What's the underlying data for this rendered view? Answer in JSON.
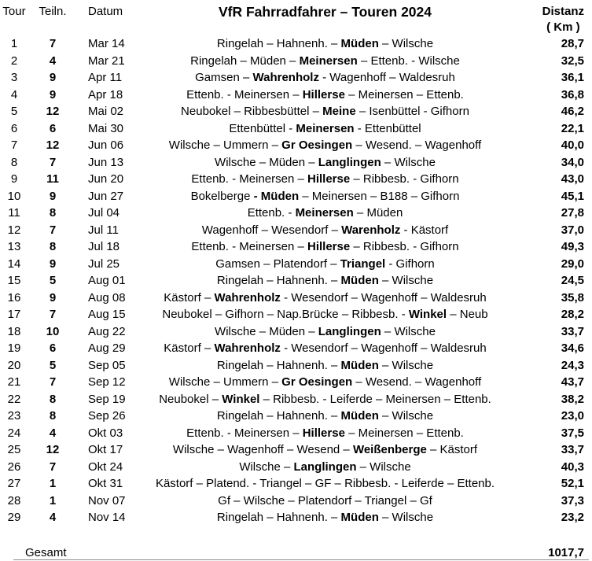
{
  "header": {
    "tour": "Tour",
    "teiln": "Teiln.",
    "datum": "Datum",
    "title": "VfR Fahrradfahrer – Touren 2024",
    "distanz_line1": "Distanz",
    "distanz_line2": "( Km )"
  },
  "rows": [
    {
      "tour": "1",
      "teiln": "7",
      "datum": "Mar 14",
      "route_pre": "Ringelah – Hahnenh. – ",
      "route_bold": "Müden",
      "route_post": " – Wilsche",
      "distanz": "28,7"
    },
    {
      "tour": "2",
      "teiln": "4",
      "datum": "Mar 21",
      "route_pre": "Ringelah – Müden – ",
      "route_bold": "Meinersen",
      "route_post": " – Ettenb. - Wilsche",
      "distanz": "32,5"
    },
    {
      "tour": "3",
      "teiln": "9",
      "datum": "Apr 11",
      "route_pre": "Gamsen – ",
      "route_bold": "Wahrenholz",
      "route_post": " - Wagenhoff – Waldesruh",
      "distanz": "36,1"
    },
    {
      "tour": "4",
      "teiln": "9",
      "datum": "Apr 18",
      "route_pre": "Ettenb. - Meinersen – ",
      "route_bold": "Hillerse",
      "route_post": " – Meinersen – Ettenb.",
      "distanz": "36,8"
    },
    {
      "tour": "5",
      "teiln": "12",
      "datum": "Mai 02",
      "route_pre": "Neubokel – Ribbesbüttel – ",
      "route_bold": "Meine",
      "route_post": " – Isenbüttel - Gifhorn",
      "distanz": "46,2"
    },
    {
      "tour": "6",
      "teiln": "6",
      "datum": "Mai 30",
      "route_pre": "Ettenbüttel - ",
      "route_bold": "Meinersen",
      "route_post": " - Ettenbüttel",
      "distanz": "22,1"
    },
    {
      "tour": "7",
      "teiln": "12",
      "datum": "Jun 06",
      "route_pre": "Wilsche – Ummern – ",
      "route_bold": "Gr Oesingen",
      "route_post": " – Wesend. – Wagenhoff",
      "distanz": "40,0"
    },
    {
      "tour": "8",
      "teiln": "7",
      "datum": "Jun 13",
      "route_pre": "Wilsche – Müden – ",
      "route_bold": "Langlingen",
      "route_post": " – Wilsche",
      "distanz": "34,0"
    },
    {
      "tour": "9",
      "teiln": "11",
      "datum": "Jun 20",
      "route_pre": "Ettenb. - Meinersen – ",
      "route_bold": "Hillerse",
      "route_post": " – Ribbesb. - Gifhorn",
      "distanz": "43,0"
    },
    {
      "tour": "10",
      "teiln": "9",
      "datum": "Jun 27",
      "route_pre": "Bokelberge ",
      "route_bold": "- Müden",
      "route_post": " – Meinersen – B188 – Gifhorn",
      "distanz": "45,1"
    },
    {
      "tour": "11",
      "teiln": "8",
      "datum": "Jul 04",
      "route_pre": "Ettenb. - ",
      "route_bold": "Meinersen",
      "route_post": " – Müden",
      "distanz": "27,8"
    },
    {
      "tour": "12",
      "teiln": "7",
      "datum": "Jul 11",
      "route_pre": "Wagenhoff – Wesendorf – ",
      "route_bold": "Warenholz",
      "route_post": " - Kästorf",
      "distanz": "37,0"
    },
    {
      "tour": "13",
      "teiln": "8",
      "datum": "Jul 18",
      "route_pre": "Ettenb. - Meinersen – ",
      "route_bold": "Hillerse",
      "route_post": " – Ribbesb. - Gifhorn",
      "distanz": "49,3"
    },
    {
      "tour": "14",
      "teiln": "9",
      "datum": "Jul 25",
      "route_pre": "Gamsen – Platendorf – ",
      "route_bold": "Triangel",
      "route_post": " - Gifhorn",
      "distanz": "29,0"
    },
    {
      "tour": "15",
      "teiln": "5",
      "datum": "Aug 01",
      "route_pre": "Ringelah – Hahnenh. – ",
      "route_bold": "Müden",
      "route_post": " – Wilsche",
      "distanz": "24,5"
    },
    {
      "tour": "16",
      "teiln": "9",
      "datum": "Aug 08",
      "route_pre": "Kästorf – ",
      "route_bold": "Wahrenholz",
      "route_post": " - Wesendorf – Wagenhoff – Waldesruh",
      "distanz": "35,8"
    },
    {
      "tour": "17",
      "teiln": "7",
      "datum": "Aug 15",
      "route_pre": "Neubokel – Gifhorn – Nap.Brücke – Ribbesb. - ",
      "route_bold": "Winkel",
      "route_post": " – Neub",
      "distanz": "28,2"
    },
    {
      "tour": "18",
      "teiln": "10",
      "datum": "Aug 22",
      "route_pre": "Wilsche – Müden – ",
      "route_bold": "Langlingen",
      "route_post": " – Wilsche",
      "distanz": "33,7"
    },
    {
      "tour": "19",
      "teiln": "6",
      "datum": "Aug 29",
      "route_pre": "Kästorf – ",
      "route_bold": "Wahrenholz",
      "route_post": " - Wesendorf – Wagenhoff – Waldesruh",
      "distanz": "34,6"
    },
    {
      "tour": "20",
      "teiln": "5",
      "datum": "Sep 05",
      "route_pre": "Ringelah – Hahnenh. – ",
      "route_bold": "Müden",
      "route_post": " – Wilsche",
      "distanz": "24,3"
    },
    {
      "tour": "21",
      "teiln": "7",
      "datum": "Sep 12",
      "route_pre": "Wilsche – Ummern – ",
      "route_bold": "Gr Oesingen",
      "route_post": " – Wesend. – Wagenhoff",
      "distanz": "43,7"
    },
    {
      "tour": "22",
      "teiln": "8",
      "datum": "Sep 19",
      "route_pre": "Neubokel – ",
      "route_bold": "Winkel",
      "route_post": " – Ribbesb. - Leiferde – Meinersen – Ettenb.",
      "distanz": "38,2"
    },
    {
      "tour": "23",
      "teiln": "8",
      "datum": "Sep 26",
      "route_pre": "Ringelah – Hahnenh. – ",
      "route_bold": "Müden",
      "route_post": " – Wilsche",
      "distanz": "23,0"
    },
    {
      "tour": "24",
      "teiln": "4",
      "datum": "Okt 03",
      "route_pre": "Ettenb. - Meinersen – ",
      "route_bold": "Hillerse",
      "route_post": " – Meinersen – Ettenb.",
      "distanz": "37,5"
    },
    {
      "tour": "25",
      "teiln": "12",
      "datum": "Okt 17",
      "route_pre": "Wilsche – Wagenhoff – Wesend – ",
      "route_bold": "Weißenberge",
      "route_post": " – Kästorf",
      "distanz": "33,7"
    },
    {
      "tour": "26",
      "teiln": "7",
      "datum": "Okt 24",
      "route_pre": "Wilsche – ",
      "route_bold": "Langlingen",
      "route_post": " – Wilsche",
      "distanz": "40,3"
    },
    {
      "tour": "27",
      "teiln": "1",
      "datum": "Okt 31",
      "route_pre": "Kästorf – Platend. - Triangel – GF – Ribbesb. - Leiferde – Ettenb.",
      "route_bold": "",
      "route_post": "",
      "distanz": "52,1"
    },
    {
      "tour": "28",
      "teiln": "1",
      "datum": "Nov 07",
      "route_pre": "Gf – Wilsche – Platendorf – Triangel – Gf",
      "route_bold": "",
      "route_post": "",
      "distanz": "37,3"
    },
    {
      "tour": "29",
      "teiln": "4",
      "datum": "Nov 14",
      "route_pre": "Ringelah – Hahnenh. – ",
      "route_bold": "Müden",
      "route_post": " – Wilsche",
      "distanz": "23,2"
    }
  ],
  "footer": {
    "label": "Gesamt",
    "total": "1017,7"
  },
  "colors": {
    "text": "#000000",
    "background": "#ffffff",
    "rule": "#8a8a8a"
  }
}
